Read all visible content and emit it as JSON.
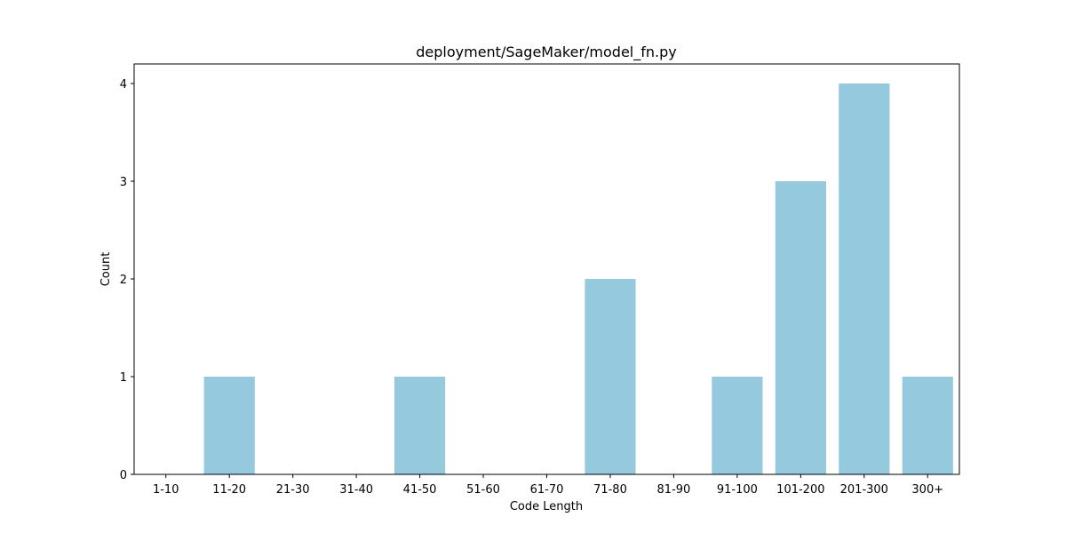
{
  "chart_data": {
    "type": "bar",
    "title": "deployment/SageMaker/model_fn.py",
    "xlabel": "Code Length",
    "ylabel": "Count",
    "categories": [
      "1-10",
      "11-20",
      "21-30",
      "31-40",
      "41-50",
      "51-60",
      "61-70",
      "71-80",
      "81-90",
      "91-100",
      "101-200",
      "201-300",
      "300+"
    ],
    "values": [
      0,
      1,
      0,
      0,
      1,
      0,
      0,
      2,
      0,
      1,
      3,
      4,
      1
    ],
    "ylim": [
      0,
      4.2
    ],
    "yticks": [
      0,
      1,
      2,
      3,
      4
    ],
    "grid": false,
    "legend": "none",
    "bar_color": "#95c9de"
  }
}
